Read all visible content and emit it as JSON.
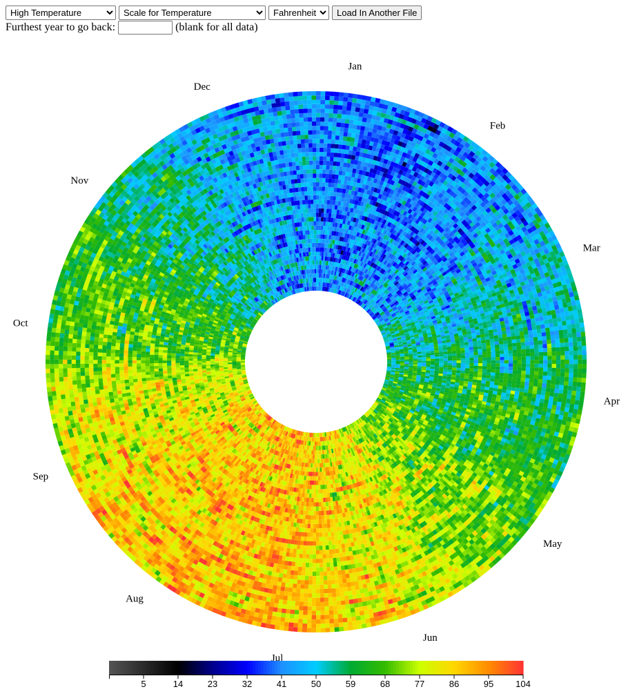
{
  "controls": {
    "measure_options": [
      "High Temperature"
    ],
    "measure_selected": "High Temperature",
    "scale_options": [
      "Scale for Temperature"
    ],
    "scale_selected": "Scale for Temperature",
    "unit_options": [
      "Fahrenheit"
    ],
    "unit_selected": "Fahrenheit",
    "load_button": "Load In Another File",
    "year_label": "Furthest year to go back:",
    "year_value": "",
    "year_hint": "(blank for all data)"
  },
  "chart_data": {
    "type": "heatmap",
    "layout": "radial",
    "month_labels": [
      "Jan",
      "Feb",
      "Mar",
      "Apr",
      "May",
      "Jun",
      "Jul",
      "Aug",
      "Sep",
      "Oct",
      "Nov",
      "Dec"
    ],
    "colorbar": {
      "ticks": [
        5,
        14,
        23,
        32,
        41,
        50,
        59,
        68,
        77,
        86,
        95,
        104
      ],
      "range": [
        -4,
        104
      ],
      "stops": [
        {
          "value": -4,
          "color": "#555555"
        },
        {
          "value": 14,
          "color": "#000000"
        },
        {
          "value": 23,
          "color": "#00008b"
        },
        {
          "value": 32,
          "color": "#0000ff"
        },
        {
          "value": 41,
          "color": "#1e90ff"
        },
        {
          "value": 50,
          "color": "#00ccff"
        },
        {
          "value": 59,
          "color": "#00aa33"
        },
        {
          "value": 68,
          "color": "#33bb00"
        },
        {
          "value": 77,
          "color": "#ccff00"
        },
        {
          "value": 86,
          "color": "#ffd700"
        },
        {
          "value": 95,
          "color": "#ff8c00"
        },
        {
          "value": 104,
          "color": "#ff3333"
        }
      ]
    },
    "monthly_mean_high_f": [
      40,
      42,
      52,
      62,
      72,
      83,
      88,
      87,
      79,
      67,
      55,
      44
    ],
    "years_shown": 46
  }
}
